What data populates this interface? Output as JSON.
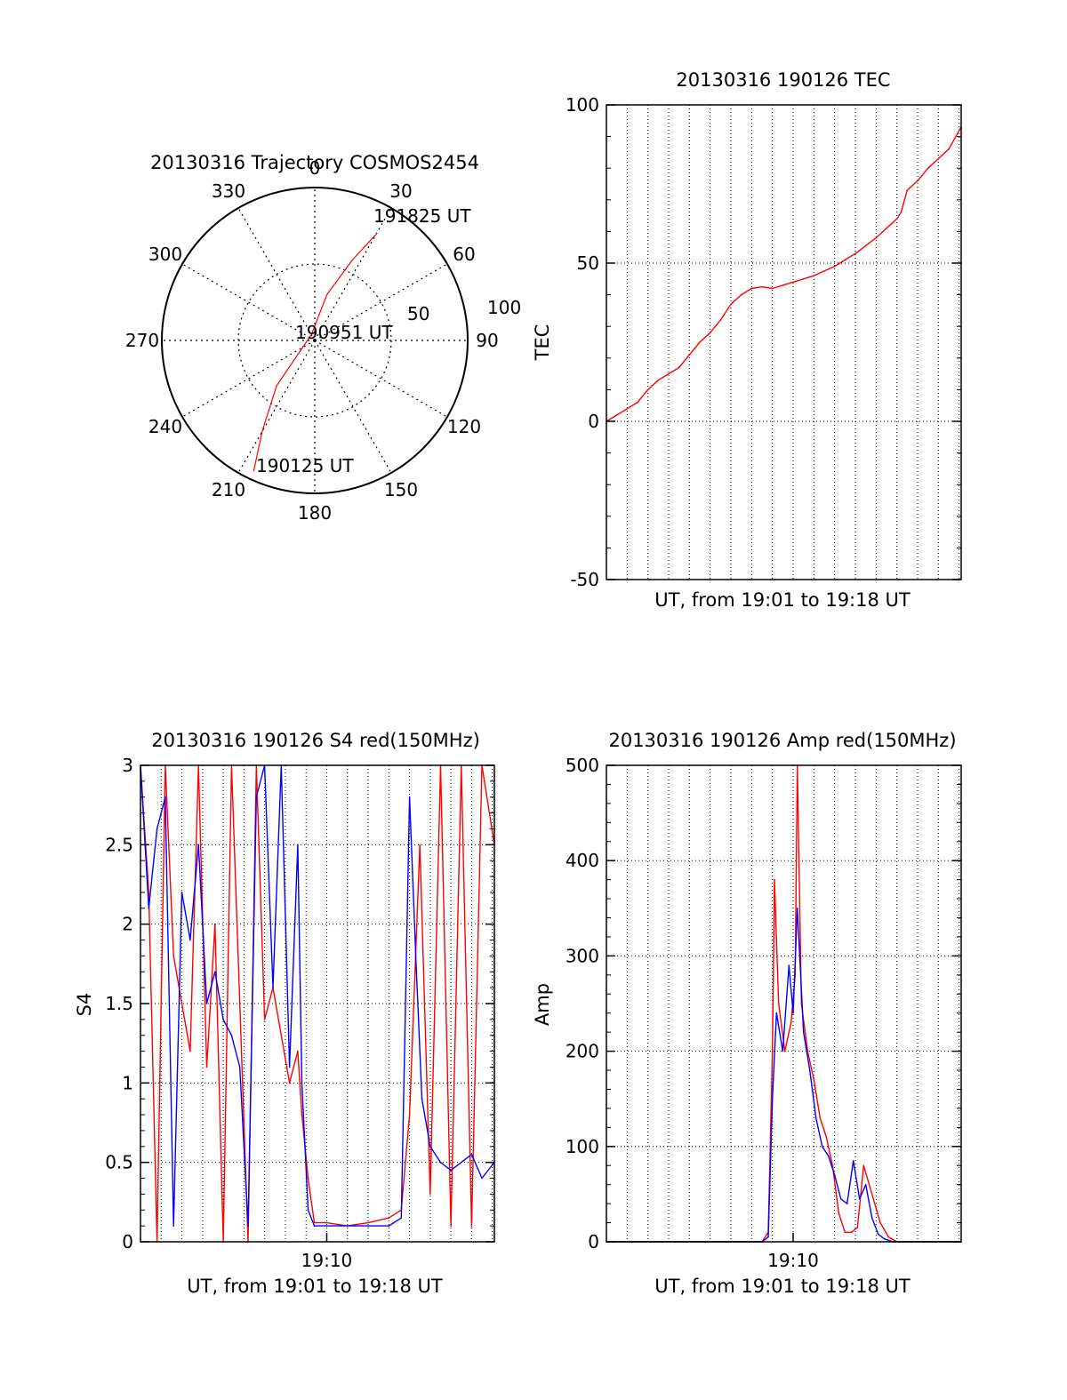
{
  "colors": {
    "red": "#ff0000",
    "blue": "#0000ff",
    "black": "#000000",
    "background": "#ffffff"
  },
  "chart_data": [
    {
      "id": "trajectory",
      "type": "polar",
      "title": "20130316 Trajectory COSMOS2454",
      "angle_labels": [
        "0",
        "30",
        "60",
        "90",
        "120",
        "150",
        "180",
        "210",
        "240",
        "270",
        "300",
        "330"
      ],
      "radius_labels": [
        "50",
        "100"
      ],
      "elevation_range": [
        0,
        90
      ],
      "track": [
        {
          "az": 205,
          "el": 5
        },
        {
          "az": 210,
          "el": 28
        },
        {
          "az": 220,
          "el": 55
        },
        {
          "az": 330,
          "el": 86
        },
        {
          "az": 15,
          "el": 62
        },
        {
          "az": 25,
          "el": 38
        },
        {
          "az": 30,
          "el": 18
        }
      ],
      "annotations": [
        "191825 UT",
        "190951 UT",
        "190125 UT"
      ]
    },
    {
      "id": "tec",
      "type": "line",
      "title": "20130316 190126 TEC",
      "xlabel": "UT, from 19:01 to 19:18 UT",
      "ylabel": "TEC",
      "xlim": [
        0,
        17.1
      ],
      "ylim": [
        -50,
        100
      ],
      "yticks": [
        "-50",
        "0",
        "50",
        "100"
      ],
      "grid": true,
      "x_grid_step_min": 1,
      "series": [
        {
          "name": "TEC",
          "color": "red",
          "x": [
            0,
            0.5,
            1,
            1.5,
            2,
            2.5,
            3,
            3.5,
            4,
            4.5,
            5,
            5.5,
            6,
            6.5,
            7,
            7.5,
            8,
            8.5,
            9,
            9.5,
            10,
            10.5,
            11,
            11.5,
            12,
            12.5,
            13,
            13.5,
            14,
            14.2,
            14.5,
            15,
            15.5,
            16,
            16.5,
            17.1
          ],
          "y": [
            0,
            2,
            4,
            6,
            10,
            13,
            15,
            17,
            21,
            25,
            28,
            32,
            37,
            40,
            42,
            42.5,
            42,
            43,
            44,
            45,
            46,
            47.5,
            49,
            51,
            53,
            55.5,
            58,
            61,
            64,
            66,
            73,
            76,
            80,
            83,
            86,
            93
          ]
        }
      ]
    },
    {
      "id": "s4",
      "type": "line",
      "title": "20130316 190126 S4 red(150MHz)",
      "xlabel": "UT, from 19:01 to 19:18 UT",
      "ylabel": "S4",
      "xlim": [
        0,
        17.1
      ],
      "ylim": [
        0,
        3
      ],
      "yticks": [
        "0",
        "0.5",
        "1",
        "1.5",
        "2",
        "2.5",
        "3"
      ],
      "xticks": [
        {
          "x": 9,
          "label": "19:10"
        }
      ],
      "grid": true,
      "x_grid_step_min": 1,
      "series": [
        {
          "name": "S4 red",
          "color": "red",
          "x": [
            0,
            0.4,
            0.8,
            1.2,
            1.6,
            2,
            2.4,
            2.8,
            3.2,
            3.6,
            4,
            4.4,
            4.8,
            5.2,
            5.6,
            6,
            6.4,
            6.8,
            7.2,
            7.6,
            7.8,
            8.1,
            8.4,
            9,
            10,
            11,
            12,
            12.6,
            13,
            13.5,
            14,
            14.5,
            15,
            15.5,
            16,
            16.5,
            17.1
          ],
          "y": [
            3,
            2.2,
            0,
            3,
            1.8,
            1.5,
            1.2,
            3,
            1.1,
            2,
            0,
            3,
            1.5,
            0,
            3,
            1.4,
            1.6,
            1.3,
            1.0,
            1.2,
            0.8,
            0.4,
            0.12,
            0.12,
            0.1,
            0.12,
            0.15,
            0.2,
            0.8,
            2.5,
            0.3,
            3,
            0.1,
            3,
            0.1,
            3,
            2.5
          ]
        },
        {
          "name": "S4 blue",
          "color": "blue",
          "x": [
            0,
            0.4,
            0.8,
            1.2,
            1.6,
            2,
            2.4,
            2.8,
            3.2,
            3.6,
            4,
            4.4,
            4.8,
            5.2,
            5.6,
            6,
            6.4,
            6.8,
            7.2,
            7.6,
            7.8,
            8.1,
            8.4,
            9,
            10,
            11,
            12,
            12.6,
            13,
            13.3,
            13.6,
            14,
            14.5,
            15,
            15.5,
            16,
            16.5,
            17.1
          ],
          "y": [
            3,
            2.1,
            2.6,
            2.8,
            0.1,
            2.2,
            1.9,
            2.5,
            1.5,
            1.7,
            1.4,
            1.3,
            1.1,
            0.1,
            2.8,
            3,
            1.6,
            3,
            1.1,
            2.5,
            1.0,
            0.2,
            0.1,
            0.1,
            0.1,
            0.1,
            0.1,
            0.15,
            2.8,
            1.8,
            0.9,
            0.6,
            0.5,
            0.45,
            0.5,
            0.55,
            0.4,
            0.5
          ]
        }
      ]
    },
    {
      "id": "amp",
      "type": "line",
      "title": "20130316 190126 Amp red(150MHz)",
      "xlabel": "UT, from 19:01 to 19:18 UT",
      "ylabel": "Amp",
      "xlim": [
        0,
        17.1
      ],
      "ylim": [
        0,
        500
      ],
      "yticks": [
        "0",
        "100",
        "200",
        "300",
        "400",
        "500"
      ],
      "xticks": [
        {
          "x": 9,
          "label": "19:10"
        }
      ],
      "grid": true,
      "x_grid_step_min": 1,
      "series": [
        {
          "name": "Amp red",
          "color": "red",
          "x": [
            0,
            7.5,
            7.8,
            8.0,
            8.1,
            8.3,
            8.6,
            8.9,
            9.1,
            9.2,
            9.4,
            9.7,
            10.0,
            10.3,
            10.6,
            10.9,
            11.2,
            11.5,
            11.8,
            12.1,
            12.4,
            12.8,
            13.2,
            13.6,
            14.0,
            15,
            17.1
          ],
          "y": [
            0,
            0,
            10,
            200,
            380,
            250,
            200,
            230,
            280,
            500,
            250,
            200,
            170,
            130,
            110,
            80,
            30,
            10,
            10,
            15,
            80,
            50,
            20,
            5,
            0,
            0,
            0
          ]
        },
        {
          "name": "Amp blue",
          "color": "blue",
          "x": [
            0,
            7.5,
            7.8,
            8.0,
            8.2,
            8.5,
            8.8,
            9.0,
            9.2,
            9.5,
            9.8,
            10.1,
            10.4,
            10.7,
            11.0,
            11.3,
            11.6,
            11.9,
            12.2,
            12.5,
            12.8,
            13.1,
            13.4,
            13.8,
            15,
            17.1
          ],
          "y": [
            0,
            0,
            5,
            150,
            240,
            200,
            290,
            240,
            350,
            220,
            180,
            130,
            100,
            90,
            70,
            45,
            40,
            85,
            45,
            60,
            25,
            8,
            3,
            0,
            0,
            0
          ]
        }
      ]
    }
  ]
}
